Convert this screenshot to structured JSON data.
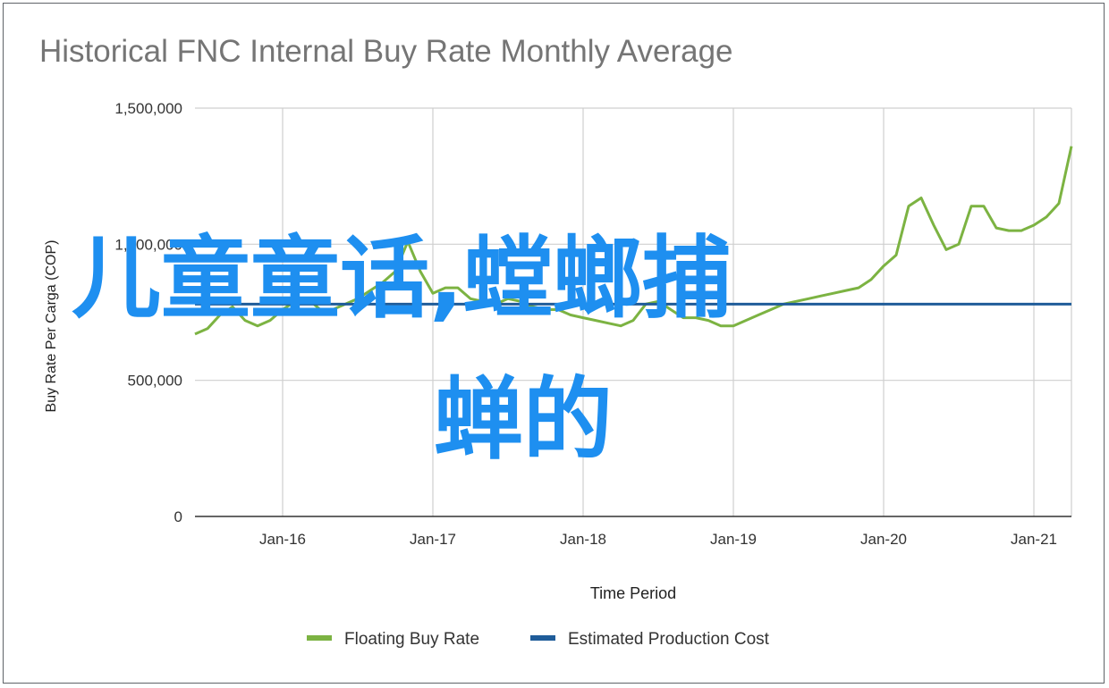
{
  "chart_data": {
    "type": "line",
    "title": "Historical FNC Internal Buy Rate Monthly Average",
    "xlabel": "Time Period",
    "ylabel": "Buy Rate Per Carga (COP)",
    "ylim": [
      0,
      1500000
    ],
    "xlim": [
      "2015-06",
      "2021-04"
    ],
    "y_ticks": [
      "0",
      "500,000",
      "1,000,000",
      "1,500,000"
    ],
    "y_tick_values": [
      0,
      500000,
      1000000,
      1500000
    ],
    "x_ticks": [
      "Jan-16",
      "Jan-17",
      "Jan-18",
      "Jan-19",
      "Jan-20",
      "Jan-21"
    ],
    "x_tick_values": [
      "2016-01",
      "2017-01",
      "2018-01",
      "2019-01",
      "2020-01",
      "2021-01"
    ],
    "grid": true,
    "legend_position": "bottom",
    "series": [
      {
        "name": "Floating Buy Rate",
        "color": "#7cb342",
        "x": [
          "2015-06",
          "2015-07",
          "2015-08",
          "2015-09",
          "2015-10",
          "2015-11",
          "2015-12",
          "2016-01",
          "2016-02",
          "2016-03",
          "2016-04",
          "2016-05",
          "2016-06",
          "2016-07",
          "2016-08",
          "2016-09",
          "2016-10",
          "2016-11",
          "2016-12",
          "2017-01",
          "2017-02",
          "2017-03",
          "2017-04",
          "2017-05",
          "2017-06",
          "2017-07",
          "2017-08",
          "2017-09",
          "2017-10",
          "2017-11",
          "2017-12",
          "2018-01",
          "2018-02",
          "2018-03",
          "2018-04",
          "2018-05",
          "2018-06",
          "2018-07",
          "2018-08",
          "2018-09",
          "2018-10",
          "2018-11",
          "2018-12",
          "2019-01",
          "2019-02",
          "2019-03",
          "2019-04",
          "2019-05",
          "2019-06",
          "2019-07",
          "2019-08",
          "2019-09",
          "2019-10",
          "2019-11",
          "2019-12",
          "2020-01",
          "2020-02",
          "2020-03",
          "2020-04",
          "2020-05",
          "2020-06",
          "2020-07",
          "2020-08",
          "2020-09",
          "2020-10",
          "2020-11",
          "2020-12",
          "2021-01",
          "2021-02",
          "2021-03",
          "2021-04"
        ],
        "values": [
          670000,
          690000,
          740000,
          770000,
          720000,
          700000,
          720000,
          760000,
          790000,
          800000,
          760000,
          760000,
          780000,
          800000,
          830000,
          860000,
          900000,
          1010000,
          900000,
          820000,
          840000,
          840000,
          800000,
          790000,
          780000,
          800000,
          790000,
          770000,
          760000,
          760000,
          740000,
          730000,
          720000,
          710000,
          700000,
          720000,
          780000,
          790000,
          760000,
          730000,
          730000,
          720000,
          700000,
          700000,
          720000,
          740000,
          760000,
          780000,
          790000,
          800000,
          810000,
          820000,
          830000,
          840000,
          870000,
          920000,
          960000,
          1140000,
          1170000,
          1070000,
          980000,
          1000000,
          1140000,
          1140000,
          1060000,
          1050000,
          1050000,
          1070000,
          1100000,
          1150000,
          1360000
        ]
      },
      {
        "name": "Estimated Production Cost",
        "color": "#1f5c99",
        "x": [
          "2015-06",
          "2021-04"
        ],
        "values": [
          780000,
          780000
        ]
      }
    ]
  },
  "overlay_text": {
    "line1": "儿童童话,螳螂捕",
    "line2": "蝉的"
  }
}
